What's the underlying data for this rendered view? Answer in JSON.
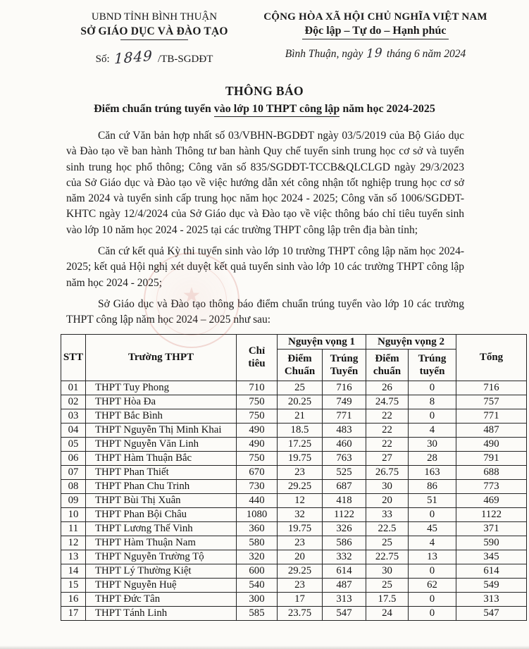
{
  "header_left": {
    "org_parent": "UBND TỈNH BÌNH THUẬN",
    "org_name": "SỞ GIÁO DỤC VÀ ĐÀO TẠO",
    "doc_no_label": "Số:",
    "doc_no_value": "1849",
    "doc_no_suffix": "/TB-SGDĐT"
  },
  "header_right": {
    "motto_line1": "CỘNG HÒA XÃ HỘI CHỦ NGHĨA VIỆT NAM",
    "motto_line2": "Độc lập – Tự do – Hạnh phúc",
    "place_date_prefix": "Bình Thuận, ngày",
    "date_day": "19",
    "place_date_suffix": "tháng 6 năm 2024"
  },
  "title": {
    "heading": "THÔNG BÁO",
    "subtitle_pre": "Điểm chuẩn trúng tuyển ",
    "subtitle_underlined": "vào lớp 10 THPT công lập",
    "subtitle_post": " năm học 2024-2025"
  },
  "paragraphs": [
    "Căn cứ Văn bản hợp nhất số 03/VBHN-BGDĐT ngày 03/5/2019 của Bộ Giáo dục và Đào tạo về ban hành Thông tư ban hành Quy chế tuyển sinh trung học cơ sở và tuyển sinh trung học phổ thông; Công văn số 835/SGDĐT-TCCB&QLCLGD ngày 29/3/2023 của Sở Giáo dục và Đào tạo về việc hướng dẫn xét công nhận tốt nghiệp trung học cơ sở năm 2024 và tuyển sinh cấp trung học năm học 2024 - 2025; Công văn số 1006/SGDĐT-KHTC ngày 12/4/2024 của Sở Giáo dục và Đào tạo về việc thông báo chỉ tiêu tuyển sinh vào lớp 10 năm học 2024 - 2025 tại các trường THPT công lập trên địa bàn tỉnh;",
    "Căn cứ kết quả Kỳ thi tuyển sinh vào lớp 10 trường THPT công lập năm học 2024-2025; kết quả Hội nghị xét duyệt kết quả tuyển sinh vào lớp 10 các trường THPT công lập năm học 2024 - 2025;",
    "Sở Giáo dục và Đào tạo thông báo điểm chuẩn trúng tuyển vào lớp 10 các trường THPT công lập năm học 2024 – 2025 như sau:"
  ],
  "table": {
    "col_stt": "STT",
    "col_school": "Trường THPT",
    "col_quota_line1": "Chỉ",
    "col_quota_line2": "tiêu",
    "group_nv1": "Nguyện vọng 1",
    "group_nv2": "Nguyện vọng 2",
    "nv1_score_line1": "Điểm",
    "nv1_score_line2": "Chuẩn",
    "nv1_adm_line1": "Trúng",
    "nv1_adm_line2": "Tuyển",
    "nv2_score_line1": "Điểm",
    "nv2_score_line2": "chuẩn",
    "nv2_adm_line1": "Trúng",
    "nv2_adm_line2": "tuyển",
    "col_total": "Tổng",
    "rows": [
      [
        "01",
        "THPT Tuy Phong",
        "710",
        "25",
        "716",
        "26",
        "0",
        "716"
      ],
      [
        "02",
        "THPT Hòa Đa",
        "750",
        "20.25",
        "749",
        "24.75",
        "8",
        "757"
      ],
      [
        "03",
        "THPT Bắc Bình",
        "750",
        "21",
        "771",
        "22",
        "0",
        "771"
      ],
      [
        "04",
        "THPT Nguyễn Thị Minh Khai",
        "490",
        "18.5",
        "483",
        "22",
        "4",
        "487"
      ],
      [
        "05",
        "THPT Nguyễn Văn Linh",
        "490",
        "17.25",
        "460",
        "22",
        "30",
        "490"
      ],
      [
        "06",
        "THPT Hàm Thuận Bắc",
        "750",
        "19.75",
        "763",
        "27",
        "28",
        "791"
      ],
      [
        "07",
        "THPT Phan Thiết",
        "670",
        "23",
        "525",
        "26.75",
        "163",
        "688"
      ],
      [
        "08",
        "THPT Phan Chu Trinh",
        "730",
        "29.25",
        "687",
        "30",
        "86",
        "773"
      ],
      [
        "09",
        "THPT Bùi Thị Xuân",
        "440",
        "12",
        "418",
        "20",
        "51",
        "469"
      ],
      [
        "10",
        "THPT Phan Bội Châu",
        "1080",
        "32",
        "1122",
        "33",
        "0",
        "1122"
      ],
      [
        "11",
        "THPT Lương Thế Vinh",
        "360",
        "19.75",
        "326",
        "22.5",
        "45",
        "371"
      ],
      [
        "12",
        "THPT Hàm Thuận Nam",
        "580",
        "23",
        "586",
        "25",
        "4",
        "590"
      ],
      [
        "13",
        "THPT Nguyễn Trường Tộ",
        "320",
        "20",
        "332",
        "22.75",
        "13",
        "345"
      ],
      [
        "14",
        "THPT Lý Thường Kiệt",
        "600",
        "29.25",
        "614",
        "30",
        "0",
        "614"
      ],
      [
        "15",
        "THPT Nguyễn Huệ",
        "540",
        "23",
        "487",
        "25",
        "62",
        "549"
      ],
      [
        "16",
        "THPT Đức Tân",
        "300",
        "17",
        "313",
        "17.5",
        "0",
        "313"
      ],
      [
        "17",
        "THPT Tánh Linh",
        "585",
        "23.75",
        "547",
        "24",
        "0",
        "547"
      ]
    ]
  },
  "seal": {
    "color": "#c64e42",
    "star_glyph": "★"
  }
}
